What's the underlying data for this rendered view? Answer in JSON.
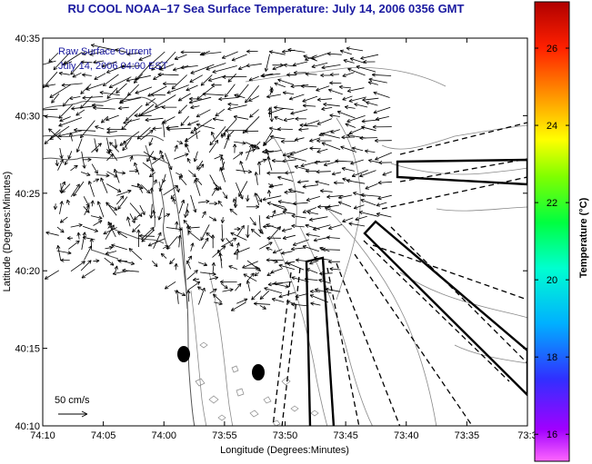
{
  "title": "RU COOL  NOAA–17  Sea Surface Temperature:  July 14, 2006 0356 GMT",
  "legend": {
    "line1": "Raw Surface Current",
    "line2": "July 14, 2006 04:00 EST",
    "scale_label": "50 cm/s"
  },
  "map": {
    "xlabel": "Longitude (Degrees:Minutes)",
    "ylabel": "Latitude (Degrees:Minutes)",
    "x_ticks": [
      "74:10",
      "74:05",
      "74:00",
      "73:55",
      "73:50",
      "73:45",
      "73:40",
      "73:35",
      "73:3"
    ],
    "y_ticks": [
      "40:35",
      "40:30",
      "40:25",
      "40:20",
      "40:15",
      "40:10"
    ]
  },
  "colorbar": {
    "label": "Temperature (°C)",
    "ticks": [
      "26",
      "24",
      "22",
      "20",
      "18",
      "16"
    ],
    "ticks_values": [
      26,
      24,
      22,
      20,
      18,
      16
    ],
    "range": [
      15.3,
      27.2
    ]
  }
}
